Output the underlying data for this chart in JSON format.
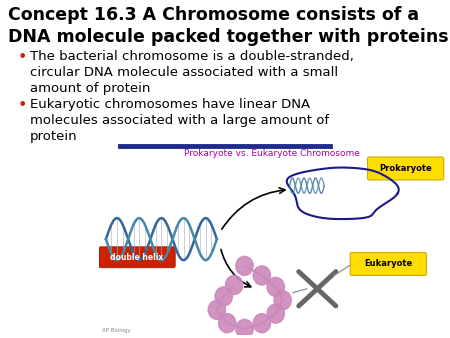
{
  "bg_color": "#ffffff",
  "title_line1": "Concept 16.3 A Chromosome consists of a",
  "title_line2": "DNA molecule packed together with proteins",
  "title_fontsize": 12.5,
  "title_color": "#000000",
  "bullet_color": "#cc2200",
  "bullet_fontsize": 9.5,
  "bullet1_lines": [
    "The bacterial chromosome is a double-stranded,",
    "circular DNA molecule associated with a small",
    "amount of protein"
  ],
  "bullet2_lines": [
    "Eukaryotic chromosomes have linear DNA",
    "molecules associated with a large amount of",
    "protein"
  ],
  "divider_color": "#1f2d8a",
  "diagram_title": "Prokaryote vs. Eukaryote Chromosome",
  "diagram_title_color": "#aa00aa",
  "prokaryote_label": "Prokaryote",
  "eukaryote_label": "Eukaryote",
  "double_helix_label": "double helix",
  "ap_biology_label": "AP Biology",
  "label_bg_yellow": "#ffdd00",
  "label_bg_red": "#cc2200",
  "prokaryote_color": "#1a1a8a",
  "helix_color1": "#336699",
  "helix_color2": "#4488aa",
  "bead_color": "#cc88bb"
}
